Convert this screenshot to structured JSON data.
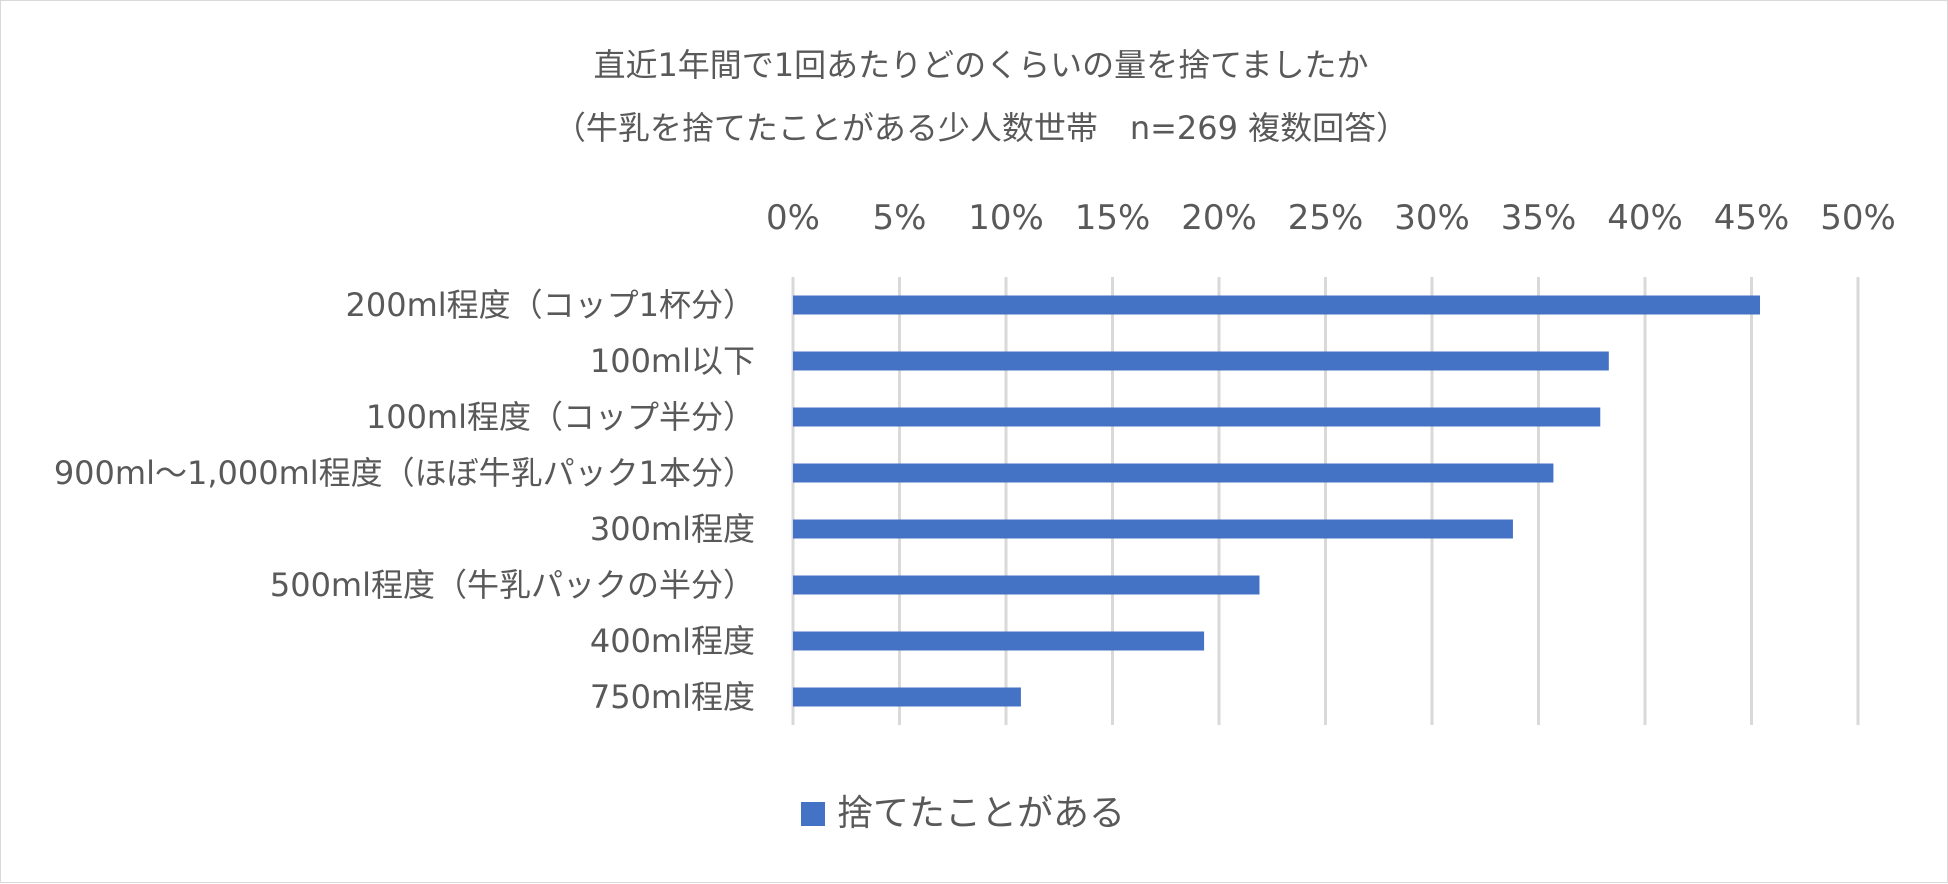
{
  "chart_data": {
    "type": "bar",
    "orientation": "horizontal",
    "title": "直近1年間で1回あたりどのくらいの量を捨てましたか",
    "subtitle": "（牛乳を捨てたことがある少人数世帯　n=269 複数回答）",
    "categories": [
      "200ml程度（コップ1杯分）",
      "100ml以下",
      "100ml程度（コップ半分）",
      "900ml～1,000ml程度（ほぼ牛乳パック1本分）",
      "300ml程度",
      "500ml程度（牛乳パックの半分）",
      "400ml程度",
      "750ml程度"
    ],
    "series": [
      {
        "name": "捨てたことがある",
        "values": [
          45.4,
          38.3,
          37.9,
          35.7,
          33.8,
          21.9,
          19.3,
          10.7
        ]
      }
    ],
    "xlim": [
      0,
      50
    ],
    "x_ticks": [
      "0%",
      "5%",
      "10%",
      "15%",
      "20%",
      "25%",
      "30%",
      "35%",
      "40%",
      "45%",
      "50%"
    ],
    "x_tick_values": [
      0,
      5,
      10,
      15,
      20,
      25,
      30,
      35,
      40,
      45,
      50
    ],
    "x_axis_position": "top",
    "grid": true,
    "legend_position": "bottom",
    "colors": {
      "bar": "#4472c4",
      "grid": "#d9d9d9",
      "text": "#595959"
    }
  }
}
